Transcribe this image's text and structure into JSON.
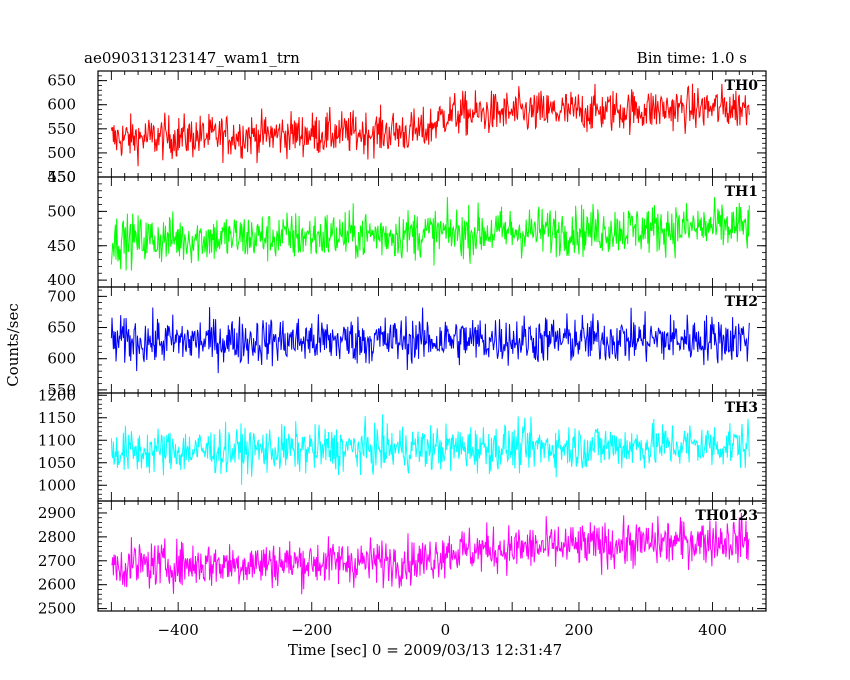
{
  "chart_data": {
    "type": "line",
    "title_left": "ae090313123147_wam1_trn",
    "title_right": "Bin time: 1.0 s",
    "xlabel": "Time [sec] 0 = 2009/03/13 12:31:47",
    "ylabel": "Counts/sec",
    "xlim": [
      -520,
      480
    ],
    "x_ticks": [
      -400,
      -200,
      0,
      200,
      400
    ],
    "x_tick_labels": [
      "−400",
      "−200",
      "0",
      "200",
      "400"
    ],
    "x_range": [
      -500,
      455
    ],
    "panels": [
      {
        "name": "TH0",
        "color": "#ff0000",
        "ylim": [
          450,
          670
        ],
        "y_ticks": [
          450,
          500,
          550,
          600,
          650
        ],
        "y_tick_labels": [
          "450",
          "500",
          "550",
          "600",
          "650"
        ],
        "trend": [
          [
            -500,
            530
          ],
          [
            -30,
            545
          ],
          [
            0,
            580
          ],
          [
            455,
            595
          ]
        ],
        "noise_amplitude": 35
      },
      {
        "name": "TH1",
        "color": "#00ff00",
        "ylim": [
          390,
          550
        ],
        "y_ticks": [
          400,
          450,
          500,
          550
        ],
        "y_tick_labels": [
          "400",
          "450",
          "500",
          "550"
        ],
        "trend": [
          [
            -500,
            458
          ],
          [
            455,
            478
          ]
        ],
        "noise_amplitude": 28
      },
      {
        "name": "TH2",
        "color": "#0000ff",
        "ylim": [
          545,
          715
        ],
        "y_ticks": [
          550,
          600,
          650,
          700
        ],
        "y_tick_labels": [
          "550",
          "600",
          "650",
          "700"
        ],
        "trend": [
          [
            -500,
            628
          ],
          [
            455,
            632
          ]
        ],
        "noise_amplitude": 30
      },
      {
        "name": "TH3",
        "color": "#00ffff",
        "ylim": [
          965,
          1205
        ],
        "y_ticks": [
          1000,
          1050,
          1100,
          1150,
          1200
        ],
        "y_tick_labels": [
          "1000",
          "1050",
          "1100",
          "1150",
          "1200"
        ],
        "trend": [
          [
            -500,
            1075
          ],
          [
            455,
            1090
          ]
        ],
        "noise_amplitude": 40
      },
      {
        "name": "TH0123",
        "color": "#ff00ff",
        "ylim": [
          2490,
          2950
        ],
        "y_ticks": [
          2500,
          2600,
          2700,
          2800,
          2900
        ],
        "y_tick_labels": [
          "2500",
          "2600",
          "2700",
          "2800",
          "2900"
        ],
        "trend": [
          [
            -500,
            2680
          ],
          [
            -30,
            2700
          ],
          [
            0,
            2740
          ],
          [
            455,
            2790
          ]
        ],
        "noise_amplitude": 75
      }
    ]
  }
}
